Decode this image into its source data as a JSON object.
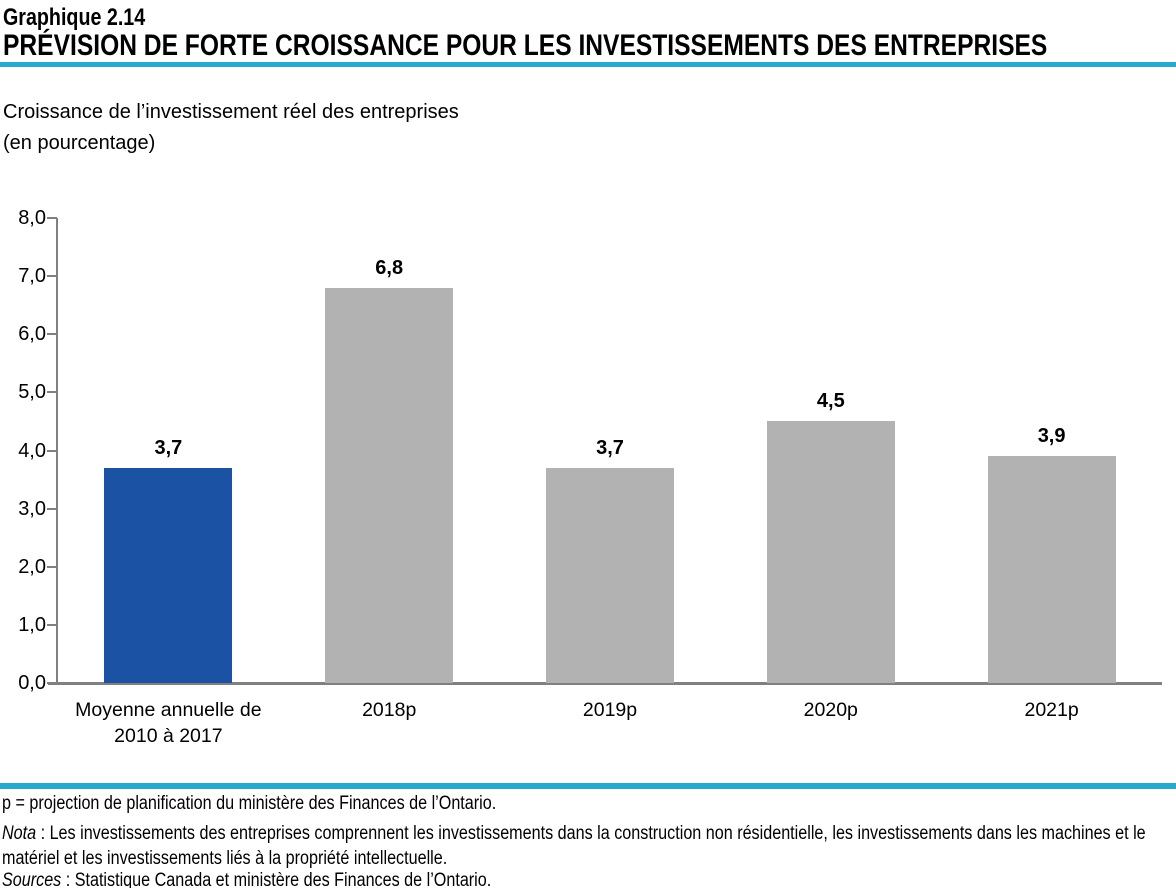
{
  "header": {
    "label": "Graphique 2.14",
    "title": "PRÉVISION DE FORTE CROISSANCE POUR LES INVESTISSEMENTS DES ENTREPRISES"
  },
  "subtitle": {
    "line1": "Croissance de l’investissement réel des entreprises",
    "line2": "(en pourcentage)"
  },
  "chart_data": {
    "type": "bar",
    "categories": [
      "Moyenne annuelle de 2010 à 2017",
      "2018p",
      "2019p",
      "2020p",
      "2021p"
    ],
    "values": [
      3.7,
      6.8,
      3.7,
      4.5,
      3.9
    ],
    "value_labels": [
      "3,7",
      "6,8",
      "3,7",
      "4,5",
      "3,9"
    ],
    "bar_colors": [
      "#1B52A4",
      "#B2B2B2",
      "#B2B2B2",
      "#B2B2B2",
      "#B2B2B2"
    ],
    "title": "PRÉVISION DE FORTE CROISSANCE POUR LES INVESTISSEMENTS DES ENTREPRISES",
    "xlabel": "",
    "ylabel": "Croissance de l’investissement réel des entreprises (en pourcentage)",
    "ylim": [
      0,
      8
    ],
    "y_ticks": [
      "8,0",
      "7,0",
      "6,0",
      "5,0",
      "4,0",
      "3,0",
      "2,0",
      "1,0",
      "0,0"
    ],
    "grid": false,
    "legend_position": "none"
  },
  "footer": {
    "line1": "p = projection de planification du ministère des Finances de l’Ontario.",
    "nota_label": "Nota",
    "nota_text": " : Les investissements des entreprises comprennent les investissements dans la construction non résidentielle, les investissements dans les machines et le matériel et les investissements liés à la propriété intellectuelle.",
    "sources_label": "Sources",
    "sources_text": " : Statistique Canada et ministère des Finances de l’Ontario."
  },
  "colors": {
    "accent_teal": "#29A9CB",
    "bar_blue": "#1B52A4",
    "bar_gray": "#B2B2B2",
    "axis_gray": "#808080",
    "text": "#000000"
  }
}
